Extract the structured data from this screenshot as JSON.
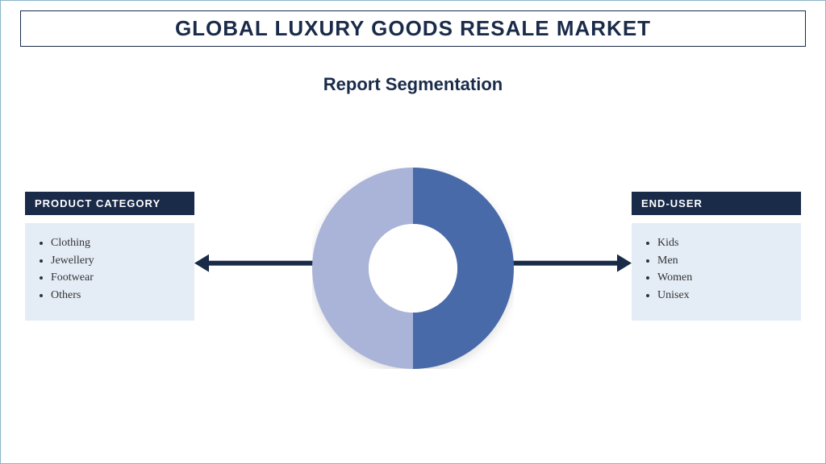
{
  "title": "GLOBAL LUXURY GOODS RESALE MARKET",
  "subtitle": "Report Segmentation",
  "donut": {
    "type": "donut",
    "outer_radius": 125,
    "inner_radius": 55,
    "center_fill": "#ffffff",
    "slices": [
      {
        "start_angle": 180,
        "end_angle": 360,
        "color": "#a9b4d8"
      },
      {
        "start_angle": 0,
        "end_angle": 180,
        "color": "#4a6aa8"
      }
    ],
    "shadow_color": "rgba(0,0,0,0.12)"
  },
  "arrows": {
    "color": "#1a2b4a",
    "thickness": 6,
    "head_size": 18
  },
  "segments": {
    "left": {
      "header": "PRODUCT CATEGORY",
      "items": [
        "Clothing",
        "Jewellery",
        "Footwear",
        "Others"
      ]
    },
    "right": {
      "header": "END-USER",
      "items": [
        "Kids",
        "Men",
        "Women",
        "Unisex"
      ]
    }
  },
  "styling": {
    "frame_border_color": "#8ab5c9",
    "title_border_color": "#1a2b4a",
    "title_text_color": "#1a2b4a",
    "title_fontsize": 26,
    "subtitle_fontsize": 22,
    "header_bg": "#1a2b4a",
    "header_text_color": "#ffffff",
    "body_bg": "#e4edf6",
    "body_text_color": "#333333",
    "item_fontsize": 14,
    "background_color": "#ffffff"
  }
}
